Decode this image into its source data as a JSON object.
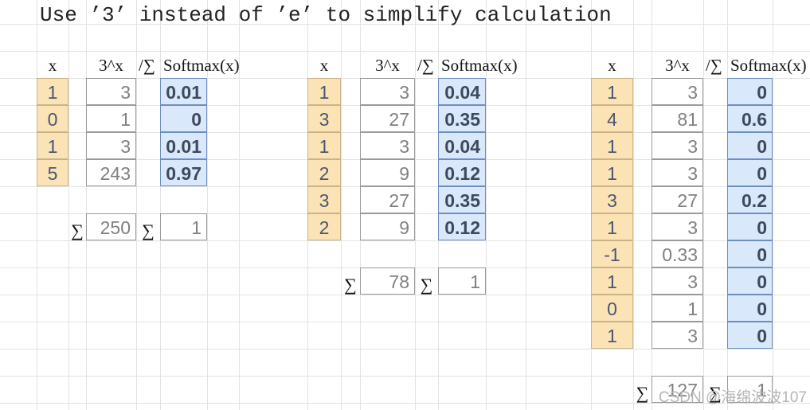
{
  "title": "Use ’3’ instead of ’e’ to simplify calculation",
  "tables": [
    {
      "headers": [
        "x",
        "3^x",
        "/∑",
        "Softmax(x)"
      ],
      "rows": [
        [
          "1",
          "3",
          "0.01"
        ],
        [
          "0",
          "1",
          "0"
        ],
        [
          "1",
          "3",
          "0.01"
        ],
        [
          "5",
          "243",
          "0.97"
        ]
      ],
      "sum_row": [
        "∑",
        "250",
        "∑",
        "1"
      ]
    },
    {
      "headers": [
        "x",
        "3^x",
        "/∑",
        "Softmax(x)"
      ],
      "rows": [
        [
          "1",
          "3",
          "0.04"
        ],
        [
          "3",
          "27",
          "0.35"
        ],
        [
          "1",
          "3",
          "0.04"
        ],
        [
          "2",
          "9",
          "0.12"
        ],
        [
          "3",
          "27",
          "0.35"
        ],
        [
          "2",
          "9",
          "0.12"
        ]
      ],
      "sum_row": [
        "∑",
        "78",
        "∑",
        "1"
      ]
    },
    {
      "headers": [
        "x",
        "3^x",
        "/∑",
        "Softmax(x)"
      ],
      "rows": [
        [
          "1",
          "3",
          "0"
        ],
        [
          "4",
          "81",
          "0.6"
        ],
        [
          "1",
          "3",
          "0"
        ],
        [
          "1",
          "3",
          "0"
        ],
        [
          "3",
          "27",
          "0.2"
        ],
        [
          "1",
          "3",
          "0"
        ],
        [
          "-1",
          "0.33",
          "0"
        ],
        [
          "1",
          "3",
          "0"
        ],
        [
          "0",
          "1",
          "0"
        ],
        [
          "1",
          "3",
          "0"
        ]
      ],
      "sum_row": [
        "∑",
        "127",
        "∑",
        "1"
      ]
    }
  ],
  "watermark": "CSDN @海绵波波107"
}
